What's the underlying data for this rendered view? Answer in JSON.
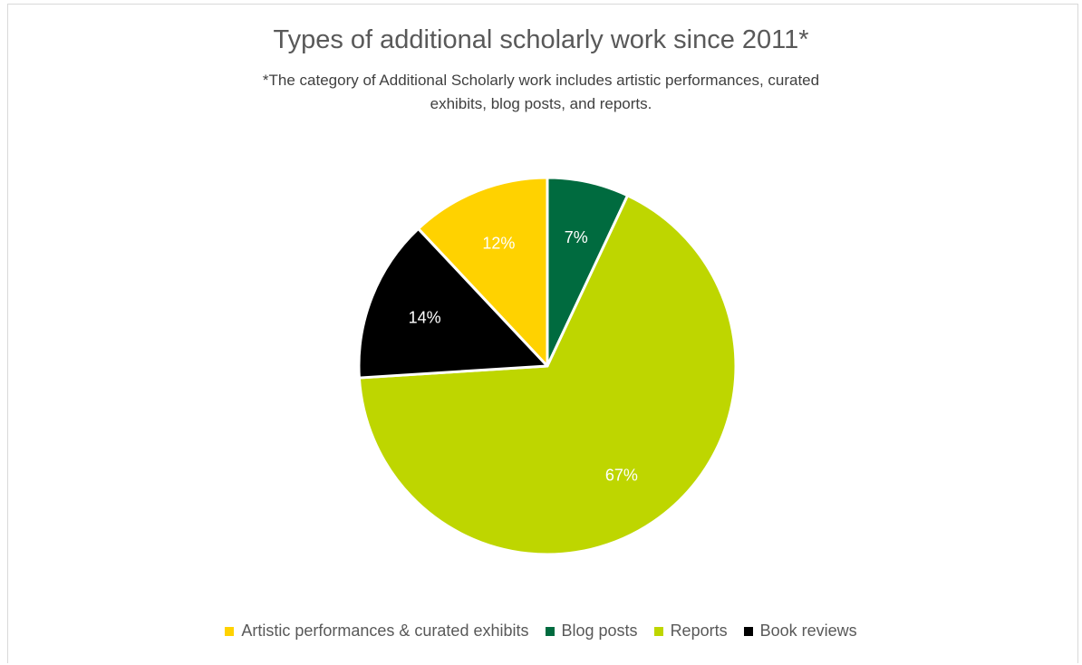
{
  "chart_data": {
    "type": "pie",
    "title": "Types of additional scholarly work since 2011*",
    "subtitle": "*The category of Additional Scholarly work includes artistic performances, curated exhibits, blog posts, and reports.",
    "legend_position": "bottom",
    "slices": [
      {
        "label": "Artistic performances & curated exhibits",
        "value": 12,
        "value_label": "12%",
        "color": "#ffd200",
        "label_color": "#ffffff"
      },
      {
        "label": "Blog posts",
        "value": 7,
        "value_label": "7%",
        "color": "#006b3f",
        "label_color": "#ffffff"
      },
      {
        "label": "Reports",
        "value": 67,
        "value_label": "67%",
        "color": "#bed600",
        "label_color": "#ffffff"
      },
      {
        "label": "Book reviews",
        "value": 14,
        "value_label": "14%",
        "color": "#000000",
        "label_color": "#ffffff"
      }
    ],
    "pie_order": [
      "Blog posts",
      "Reports",
      "Book reviews",
      "Artistic performances & curated exhibits"
    ]
  }
}
